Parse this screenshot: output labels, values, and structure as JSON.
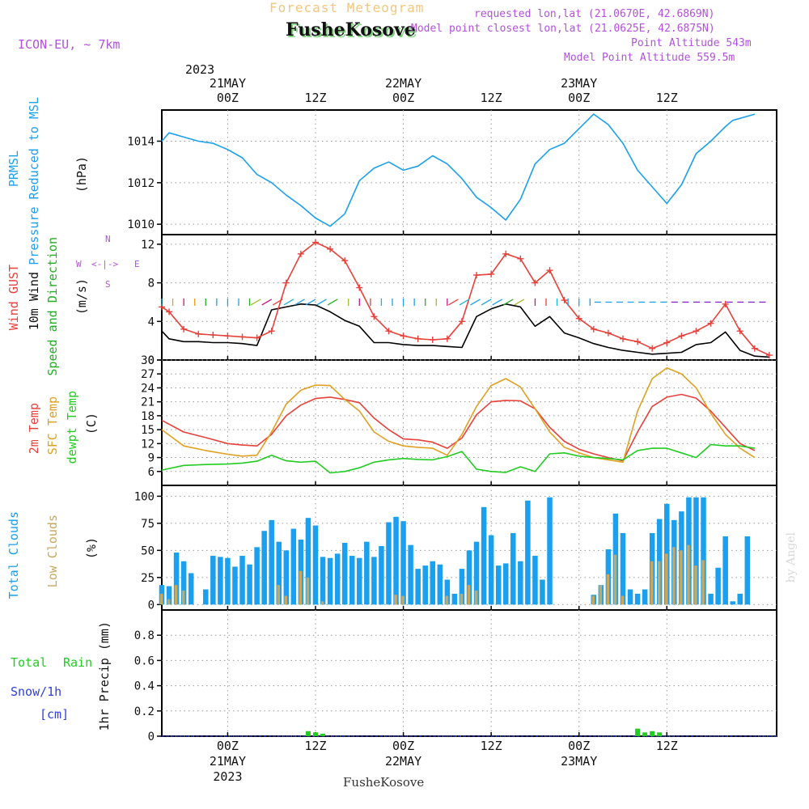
{
  "header": {
    "title": "Forecast Meteogram",
    "station": "FusheKosove",
    "model": "ICON-EU, ~ 7km",
    "requested": "requested lon,lat (21.0670E, 42.6869N)",
    "closest": "Model point closest lon,lat (21.0625E, 42.6875N)",
    "point_altitude": "Point Altitude 543m",
    "model_altitude": "Model Point Altitude 559.5m",
    "footer_station": "FusheKosove",
    "watermark": "by Angel",
    "colors": {
      "title": "#f2c77c",
      "station_shadow": "#7fd07f",
      "purple": "#b44fe0"
    }
  },
  "time_axis": {
    "top_year": "2023",
    "top_labels": [
      {
        "tick": "00Z",
        "date": "21MAY"
      },
      {
        "tick": "12Z",
        "date": ""
      },
      {
        "tick": "00Z",
        "date": "22MAY"
      },
      {
        "tick": "12Z",
        "date": ""
      },
      {
        "tick": "00Z",
        "date": "23MAY"
      },
      {
        "tick": "12Z",
        "date": ""
      }
    ],
    "bottom_labels": [
      {
        "tick": "00Z",
        "date": "21MAY",
        "year": "2023"
      },
      {
        "tick": "12Z",
        "date": "",
        "year": ""
      },
      {
        "tick": "00Z",
        "date": "22MAY",
        "year": ""
      },
      {
        "tick": "12Z",
        "date": "",
        "year": ""
      },
      {
        "tick": "00Z",
        "date": "23MAY",
        "year": ""
      },
      {
        "tick": "12Z",
        "date": "",
        "year": ""
      }
    ]
  },
  "panels": {
    "pressure": {
      "label1": "PRMSL",
      "label2": "Pressure Reduced to MSL",
      "unit": "(hPa)",
      "label_color": "#1aa0ee"
    },
    "wind": {
      "label1": "Wind GUST",
      "label2": "10m Wind",
      "label3": "Speed and Direction",
      "unit": "(m/s)",
      "compass_n": "N",
      "compass_s": "S",
      "compass_w": "W",
      "compass_e": "E",
      "compass_arrow": "<-|->",
      "colors": {
        "gust": "#e8403a",
        "wind": "#000000",
        "dir": "#22b022",
        "compass": "#b44fe0"
      }
    },
    "temp": {
      "label1": "2m Temp",
      "label2": "SFC Temp",
      "label3": "dewpt Temp",
      "unit": "(C)",
      "colors": {
        "t2m": "#e8403a",
        "sfc": "#e0a020",
        "dew": "#22cc22"
      }
    },
    "clouds": {
      "label1": "Total Clouds",
      "label2": "Low Clouds",
      "unit": "(%)",
      "colors": {
        "total": "#1aa0ee",
        "low": "#c8a860"
      }
    },
    "precip": {
      "label1": "Total",
      "label1b": "Rain",
      "label2": "Snow/1h",
      "label3": "[cm]",
      "unit": "1hr Precip (mm)",
      "colors": {
        "rain": "#22cc22",
        "snow": "#3040e0"
      }
    }
  },
  "chart_data": [
    {
      "type": "line",
      "title": "PRMSL",
      "ylabel": "(hPa)",
      "ylim": [
        1009.5,
        1015.5
      ],
      "yticks": [
        1010,
        1012,
        1014
      ],
      "x_hours": [
        -9,
        -8,
        -6,
        -4,
        -2,
        0,
        2,
        4,
        6,
        8,
        10,
        12,
        14,
        16,
        18,
        20,
        22,
        24,
        26,
        28,
        30,
        32,
        34,
        36,
        38,
        40,
        42,
        44,
        46,
        48,
        50,
        52,
        54,
        56,
        58,
        60,
        62,
        64,
        66,
        68,
        69,
        72
      ],
      "series": [
        {
          "name": "PRMSL",
          "color": "#1aa0ee",
          "values": [
            1014.0,
            1014.4,
            1014.2,
            1014.0,
            1013.9,
            1013.6,
            1013.2,
            1012.4,
            1012.0,
            1011.4,
            1010.9,
            1010.3,
            1009.9,
            1010.5,
            1012.1,
            1012.7,
            1013.0,
            1012.6,
            1012.8,
            1013.3,
            1012.9,
            1012.2,
            1011.3,
            1010.8,
            1010.2,
            1011.2,
            1012.9,
            1013.6,
            1013.9,
            1014.6,
            1015.3,
            1014.8,
            1013.9,
            1012.6,
            1011.8,
            1011.0,
            1011.9,
            1013.4,
            1014.0,
            1014.7,
            1015.0,
            1015.3
          ]
        }
      ]
    },
    {
      "type": "line",
      "title": "Wind",
      "ylabel": "(m/s)",
      "ylim": [
        0,
        13
      ],
      "yticks": [
        0,
        4,
        8,
        12
      ],
      "x_hours": [
        -9,
        -8,
        -6,
        -4,
        -2,
        0,
        2,
        4,
        6,
        8,
        10,
        12,
        14,
        16,
        18,
        20,
        22,
        24,
        26,
        28,
        30,
        32,
        34,
        36,
        38,
        40,
        42,
        44,
        46,
        48,
        50,
        52,
        54,
        56,
        58,
        60,
        62,
        64,
        66,
        68,
        70,
        72,
        74
      ],
      "series": [
        {
          "name": "Wind GUST",
          "color": "#e8403a",
          "values": [
            5.5,
            5.0,
            3.2,
            2.7,
            2.6,
            2.5,
            2.4,
            2.3,
            3.0,
            8.0,
            11.0,
            12.2,
            11.5,
            10.3,
            7.5,
            4.5,
            3.0,
            2.5,
            2.2,
            2.1,
            2.2,
            4.0,
            8.8,
            8.9,
            11.0,
            10.5,
            8.0,
            9.3,
            6.2,
            4.3,
            3.2,
            2.8,
            2.2,
            1.9,
            1.2,
            1.8,
            2.5,
            3.0,
            3.8,
            5.8,
            3.0,
            1.2,
            0.5
          ]
        },
        {
          "name": "10m Wind",
          "color": "#000000",
          "values": [
            3.0,
            2.2,
            1.9,
            1.9,
            1.8,
            1.8,
            1.7,
            1.5,
            5.2,
            5.5,
            5.8,
            5.7,
            5.0,
            4.1,
            3.5,
            1.8,
            1.8,
            1.6,
            1.5,
            1.5,
            1.4,
            1.3,
            4.5,
            5.3,
            5.8,
            5.5,
            3.5,
            4.5,
            2.8,
            2.3,
            1.7,
            1.3,
            1.0,
            0.8,
            0.6,
            0.7,
            0.8,
            1.6,
            1.8,
            2.9,
            1.0,
            0.4,
            0.3
          ]
        }
      ]
    },
    {
      "type": "line",
      "title": "Temperature",
      "ylabel": "(C)",
      "ylim": [
        3,
        30
      ],
      "yticks": [
        6,
        9,
        12,
        15,
        18,
        21,
        24,
        27,
        30
      ],
      "x_hours": [
        -9,
        -6,
        -3,
        0,
        2,
        4,
        6,
        8,
        10,
        12,
        14,
        16,
        18,
        20,
        22,
        24,
        26,
        28,
        30,
        32,
        34,
        36,
        38,
        40,
        42,
        44,
        46,
        48,
        50,
        52,
        54,
        56,
        58,
        60,
        62,
        64,
        66,
        68,
        70,
        72
      ],
      "series": [
        {
          "name": "2m Temp",
          "color": "#e8403a",
          "values": [
            17.0,
            14.5,
            13.3,
            12.0,
            11.7,
            11.5,
            14.0,
            18.0,
            20.3,
            21.7,
            22.0,
            21.5,
            20.8,
            17.5,
            15.0,
            13.0,
            12.8,
            12.3,
            11.0,
            13.2,
            18.2,
            21.0,
            21.3,
            21.2,
            19.5,
            15.5,
            12.5,
            10.8,
            9.8,
            9.0,
            8.3,
            14.5,
            20.0,
            22.0,
            22.6,
            21.8,
            19.0,
            15.5,
            12.0,
            10.5
          ]
        },
        {
          "name": "SFC Temp",
          "color": "#e0a020",
          "values": [
            15.0,
            11.5,
            10.5,
            9.7,
            9.3,
            9.5,
            14.5,
            20.5,
            23.5,
            24.6,
            24.5,
            21.5,
            19.0,
            14.5,
            12.5,
            11.5,
            11.2,
            11.0,
            9.5,
            14.0,
            20.0,
            24.5,
            26.0,
            24.2,
            19.5,
            14.5,
            11.2,
            10.0,
            9.0,
            8.5,
            8.0,
            19.0,
            26.0,
            28.3,
            27.0,
            24.0,
            18.5,
            14.0,
            11.0,
            9.0
          ]
        },
        {
          "name": "dewpt Temp",
          "color": "#22cc22",
          "values": [
            6.3,
            7.3,
            7.5,
            7.6,
            7.8,
            8.2,
            9.5,
            8.3,
            8.0,
            8.2,
            5.7,
            6.0,
            6.8,
            8.0,
            8.5,
            8.8,
            8.6,
            8.5,
            9.2,
            10.3,
            6.5,
            6.0,
            5.8,
            7.0,
            6.0,
            9.8,
            10.0,
            9.3,
            9.0,
            8.8,
            8.5,
            10.5,
            11.0,
            11.0,
            10.0,
            9.0,
            11.8,
            11.5,
            11.5,
            11.0
          ]
        }
      ]
    },
    {
      "type": "bar",
      "title": "Clouds",
      "ylabel": "(%)",
      "ylim": [
        -5,
        110
      ],
      "yticks": [
        0,
        25,
        50,
        75,
        100
      ],
      "x_hours_start": -9,
      "x_hours_step": 1,
      "series": [
        {
          "name": "Total Clouds",
          "color": "#1aa0ee",
          "values": [
            18,
            17,
            48,
            40,
            29,
            0,
            14,
            45,
            44,
            43,
            35,
            45,
            37,
            53,
            68,
            78,
            58,
            50,
            70,
            60,
            80,
            73,
            44,
            43,
            47,
            57,
            45,
            43,
            58,
            44,
            54,
            76,
            81,
            77,
            55,
            33,
            36,
            40,
            37,
            23,
            10,
            33,
            50,
            58,
            90,
            64,
            36,
            38,
            66,
            40,
            96,
            45,
            23,
            99,
            0,
            0,
            0,
            0,
            0,
            9,
            18,
            51,
            84,
            66,
            14,
            10,
            14,
            66,
            79,
            93,
            78,
            86,
            99,
            99,
            99,
            10,
            34,
            63,
            3,
            10,
            63
          ]
        },
        {
          "name": "Low Clouds",
          "color": "#c8a860",
          "values": [
            10,
            5,
            18,
            13,
            0,
            0,
            0,
            0,
            0,
            0,
            0,
            0,
            0,
            0,
            0,
            0,
            18,
            8,
            0,
            31,
            25,
            0,
            3,
            0,
            0,
            0,
            0,
            0,
            0,
            0,
            0,
            0,
            9,
            8,
            0,
            0,
            0,
            0,
            0,
            8,
            0,
            10,
            18,
            13,
            0,
            0,
            0,
            0,
            0,
            0,
            0,
            0,
            0,
            0,
            0,
            0,
            0,
            0,
            0,
            8,
            18,
            28,
            46,
            8,
            0,
            0,
            0,
            40,
            40,
            47,
            53,
            50,
            55,
            36,
            41,
            0,
            0,
            0,
            0,
            0,
            0
          ]
        }
      ]
    },
    {
      "type": "bar",
      "title": "1hr Precip",
      "ylabel": "1hr Precip (mm)",
      "ylim": [
        0,
        1.0
      ],
      "yticks": [
        0,
        0.2,
        0.4,
        0.6,
        0.8
      ],
      "x_hours": [
        11,
        12,
        13,
        56,
        57,
        58,
        59
      ],
      "series": [
        {
          "name": "Total Rain",
          "color": "#22cc22",
          "values": [
            0.04,
            0.03,
            0.02,
            0.06,
            0.03,
            0.04,
            0.03
          ]
        },
        {
          "name": "Snow/1h",
          "color": "#3040e0",
          "values": [
            0,
            0,
            0,
            0,
            0,
            0,
            0
          ]
        }
      ]
    }
  ]
}
